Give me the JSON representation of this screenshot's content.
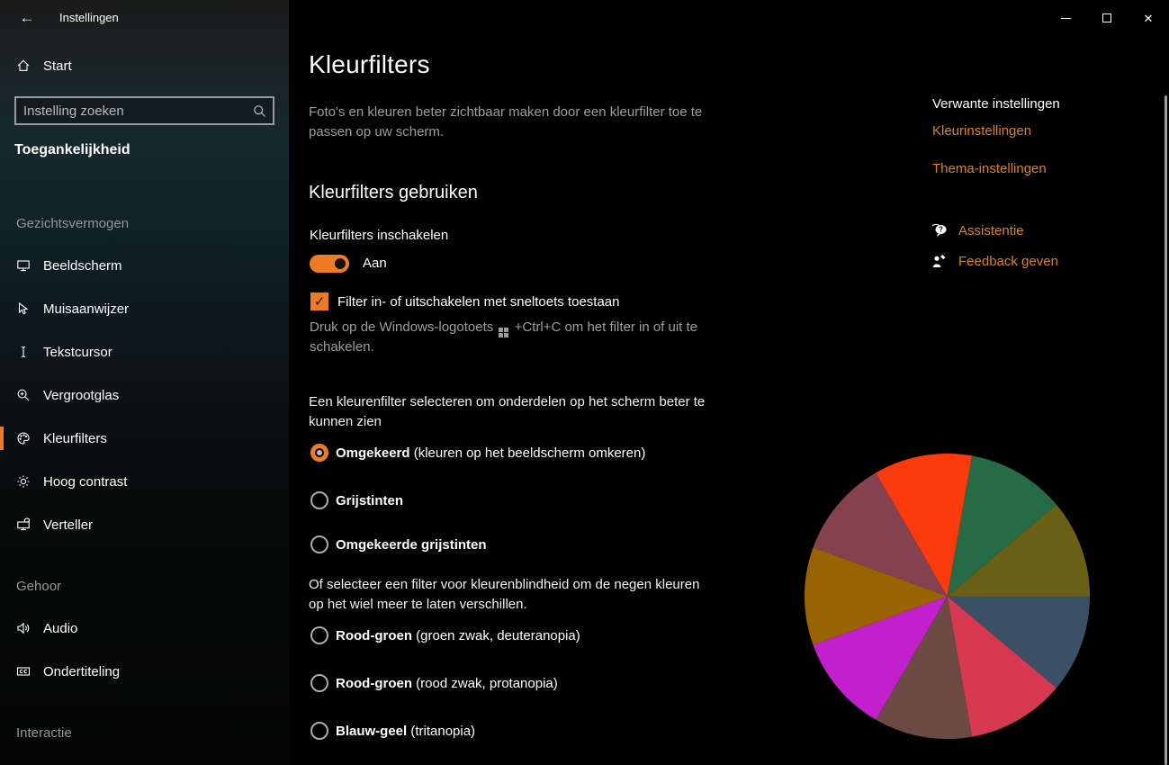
{
  "colors": {
    "accent": "#ee7a23",
    "link": "#d9821e",
    "background": "#000000",
    "sidebar_tint": "#16282c"
  },
  "window": {
    "title": "Instellingen",
    "controls": {
      "minimize": "minimize",
      "maximize": "maximize",
      "close": "✕"
    }
  },
  "sidebar": {
    "back_icon": "←",
    "home_label": "Start",
    "search_placeholder": "Instelling zoeken",
    "category": "Toegankelijkheid",
    "sections": [
      {
        "label": "Gezichtsvermogen",
        "items": [
          {
            "label": "Beeldscherm",
            "icon": "monitor-icon",
            "selected": false
          },
          {
            "label": "Muisaanwijzer",
            "icon": "mouse-pointer-icon",
            "selected": false
          },
          {
            "label": "Tekstcursor",
            "icon": "text-cursor-icon",
            "selected": false
          },
          {
            "label": "Vergrootglas",
            "icon": "magnifier-plus-icon",
            "selected": false
          },
          {
            "label": "Kleurfilters",
            "icon": "palette-icon",
            "selected": true
          },
          {
            "label": "Hoog contrast",
            "icon": "contrast-sun-icon",
            "selected": false
          },
          {
            "label": "Verteller",
            "icon": "narrator-icon",
            "selected": false
          }
        ]
      },
      {
        "label": "Gehoor",
        "items": [
          {
            "label": "Audio",
            "icon": "speaker-icon",
            "selected": false
          },
          {
            "label": "Ondertiteling",
            "icon": "closed-captions-icon",
            "selected": false
          }
        ]
      },
      {
        "label": "Interactie",
        "items": []
      }
    ]
  },
  "main": {
    "title": "Kleurfilters",
    "description": "Foto's en kleuren beter zichtbaar maken door een kleurfilter toe te passen op uw scherm.",
    "section_heading": "Kleurfilters gebruiken",
    "toggle": {
      "label": "Kleurfilters inschakelen",
      "state_label": "Aan",
      "on": true
    },
    "shortcut_checkbox": {
      "label": "Filter in- of uitschakelen met sneltoets toestaan",
      "checked": true,
      "check_glyph": "✓"
    },
    "shortcut_hint_before": "Druk op de Windows-logotoets",
    "shortcut_hint_after": "+Ctrl+C om het filter in of uit te schakelen.",
    "filter_group": {
      "intro": "Een kleurenfilter selecteren om onderdelen op het scherm beter te kunnen zien",
      "options": [
        {
          "name": "Omgekeerd",
          "detail": "(kleuren op het beeldscherm omkeren)",
          "selected": true
        },
        {
          "name": "Grijstinten",
          "detail": "",
          "selected": false
        },
        {
          "name": "Omgekeerde grijstinten",
          "detail": "",
          "selected": false
        }
      ]
    },
    "colorblind_group": {
      "intro": "Of selecteer een filter voor kleurenblindheid om de negen kleuren op het wiel meer te laten verschillen.",
      "options": [
        {
          "name": "Rood-groen",
          "detail": "(groen zwak, deuteranopia)",
          "selected": false
        },
        {
          "name": "Rood-groen",
          "detail": "(rood zwak, protanopia)",
          "selected": false
        },
        {
          "name": "Blauw-geel",
          "detail": "(tritanopia)",
          "selected": false
        }
      ]
    }
  },
  "related": {
    "heading": "Verwante instellingen",
    "links": [
      {
        "label": "Kleurinstellingen"
      },
      {
        "label": "Thema-instellingen"
      }
    ],
    "help_links": [
      {
        "label": "Assistentie",
        "icon": "help-bubble-icon"
      },
      {
        "label": "Feedback geven",
        "icon": "feedback-person-icon"
      }
    ]
  },
  "chart_data": {
    "type": "pie",
    "title": "",
    "categories": [
      "green",
      "olive",
      "slate-blue",
      "crimson",
      "brown",
      "magenta",
      "dark-gold",
      "maroon",
      "orange-red"
    ],
    "values": [
      1,
      1,
      1,
      1,
      1,
      1,
      1,
      1,
      1
    ],
    "slice_colors": [
      "#256b45",
      "#6a6015",
      "#3a5064",
      "#d63950",
      "#6a4a42",
      "#c220cd",
      "#9a6302",
      "#85414e",
      "#fb3b0c"
    ],
    "start_angle_deg": 10,
    "legend": "off",
    "note": "9-slice color wheel preview, equal 40-degree slices, inverted-filter colors"
  }
}
